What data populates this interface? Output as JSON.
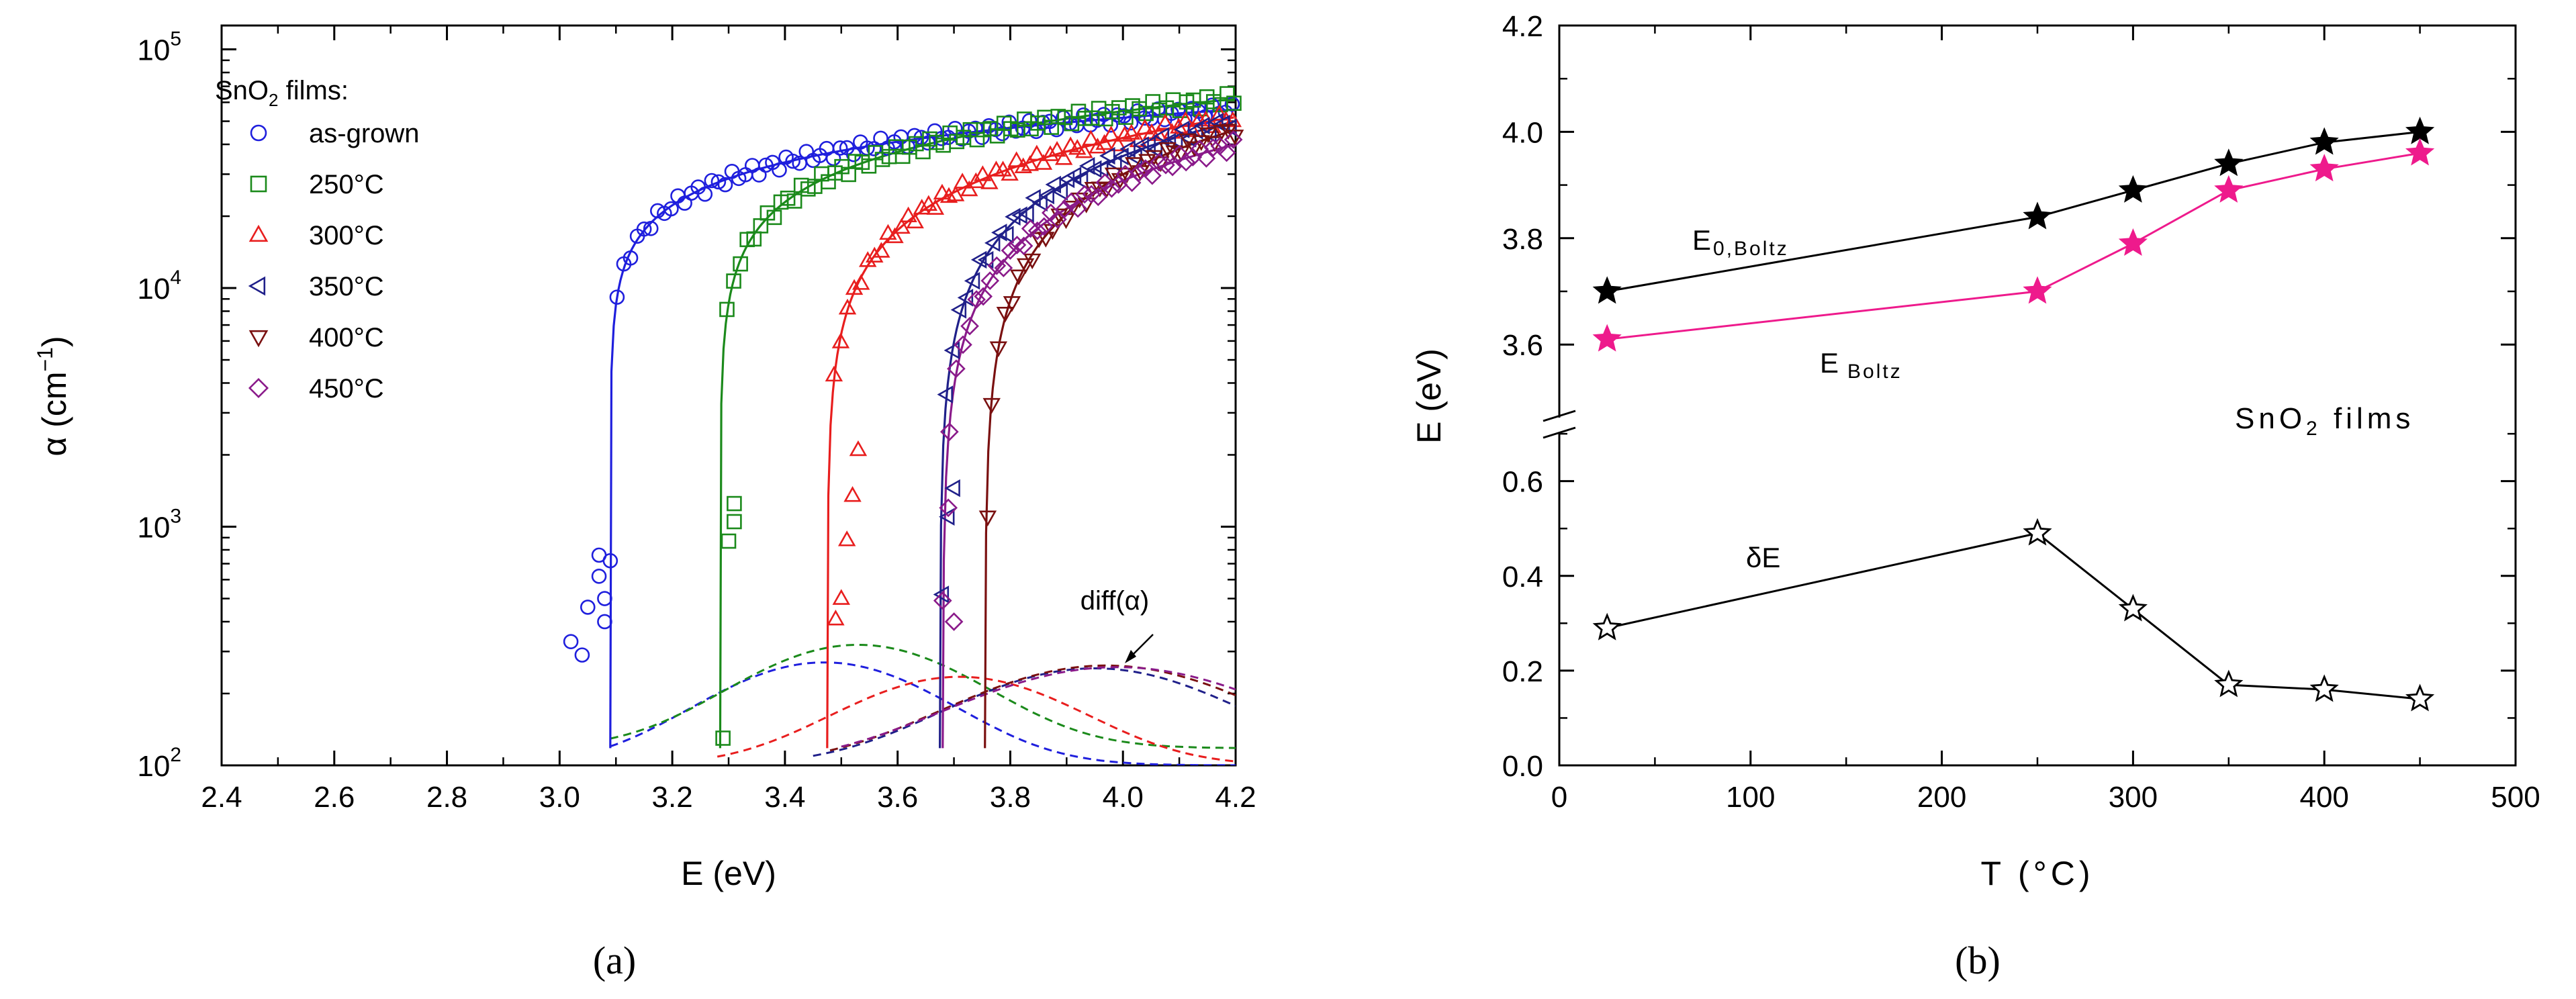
{
  "chart_data": [
    {
      "panel": "a",
      "type": "scatter",
      "caption": "(a)",
      "xlabel": "E (eV)",
      "ylabel_base": "α (cm",
      "ylabel_exp": "−1",
      "ylabel_close": ")",
      "xlim": [
        2.4,
        4.2
      ],
      "ylim_log10": [
        2,
        5.1
      ],
      "x_ticks": [
        "2.4",
        "2.6",
        "2.8",
        "3.0",
        "3.2",
        "3.4",
        "3.6",
        "3.8",
        "4.0",
        "4.2"
      ],
      "y_tick_base": "10",
      "y_tick_exps": [
        "2",
        "3",
        "4",
        "5"
      ],
      "legend": {
        "title_pre": "SnO",
        "title_sub": "2",
        "title_post": " films:",
        "entries": [
          "as-grown",
          "250°C",
          "300°C",
          "350°C",
          "400°C",
          "450°C"
        ]
      },
      "annotation": "diff(α)",
      "series": [
        {
          "name": "as-grown",
          "color": "#1f1fdd",
          "marker": "circle",
          "onset": 3.09,
          "A": 56000,
          "p": 0.4,
          "emax": 4.2,
          "scatter_low": [
            [
              3.02,
              330
            ],
            [
              3.04,
              290
            ],
            [
              3.05,
              460
            ],
            [
              3.07,
              620
            ],
            [
              3.07,
              760
            ],
            [
              3.08,
              500
            ],
            [
              3.08,
              400
            ],
            [
              3.09,
              720
            ]
          ]
        },
        {
          "name": "250°C",
          "color": "#1b8a1b",
          "marker": "square",
          "onset": 3.285,
          "A": 62000,
          "p": 0.48,
          "emax": 4.2,
          "scatter_low": [
            [
              3.29,
              130
            ],
            [
              3.3,
              870
            ],
            [
              3.31,
              1050
            ],
            [
              3.31,
              1250
            ]
          ]
        },
        {
          "name": "300°C",
          "color": "#e81e1e",
          "marker": "triangle-up",
          "onset": 3.475,
          "A": 52000,
          "p": 0.62,
          "emax": 4.2,
          "scatter_low": [
            [
              3.49,
              410
            ],
            [
              3.5,
              500
            ],
            [
              3.51,
              880
            ],
            [
              3.52,
              1350
            ],
            [
              3.53,
              2100
            ]
          ]
        },
        {
          "name": "350°C",
          "color": "#20208a",
          "marker": "triangle-left",
          "onset": 3.675,
          "A": 50000,
          "p": 0.7,
          "emax": 4.2,
          "scatter_low": [
            [
              3.68,
              520
            ],
            [
              3.69,
              1100
            ],
            [
              3.7,
              1450
            ]
          ]
        },
        {
          "name": "400°C",
          "color": "#7a1010",
          "marker": "triangle-down",
          "onset": 3.755,
          "A": 46000,
          "p": 0.72,
          "emax": 4.2,
          "scatter_low": [
            [
              3.76,
              1100
            ]
          ]
        },
        {
          "name": "450°C",
          "color": "#8a1a8a",
          "marker": "diamond",
          "onset": 3.68,
          "A": 40000,
          "p": 0.72,
          "emax": 4.2,
          "scatter_low": [
            [
              3.68,
              490
            ],
            [
              3.7,
              400
            ],
            [
              3.69,
              1200
            ]
          ]
        }
      ],
      "diff_curves": [
        {
          "color": "#1f1fdd",
          "peak_e": 3.47,
          "peak_alpha": 270,
          "width": 0.26,
          "base": 100,
          "start": 3.09,
          "end": 4.2
        },
        {
          "color": "#1b8a1b",
          "peak_e": 3.53,
          "peak_alpha": 320,
          "width": 0.26,
          "base": 118,
          "start": 3.09,
          "end": 4.2
        },
        {
          "color": "#e81e1e",
          "peak_e": 3.71,
          "peak_alpha": 235,
          "width": 0.26,
          "base": 100,
          "start": 3.28,
          "end": 4.2
        },
        {
          "color": "#20208a",
          "peak_e": 3.95,
          "peak_alpha": 255,
          "width": 0.3,
          "base": 100,
          "start": 3.45,
          "end": 4.2
        },
        {
          "color": "#7a1010",
          "peak_e": 3.97,
          "peak_alpha": 262,
          "width": 0.32,
          "base": 100,
          "start": 3.48,
          "end": 4.2
        },
        {
          "color": "#8a1a8a",
          "peak_e": 3.99,
          "peak_alpha": 258,
          "width": 0.34,
          "base": 100,
          "start": 3.5,
          "end": 4.2
        }
      ]
    },
    {
      "panel": "b",
      "type": "line",
      "caption": "(b)",
      "xlabel": "T (°C)",
      "ylabel": "E (eV)",
      "xlim": [
        0,
        500
      ],
      "x_ticks": [
        "0",
        "100",
        "200",
        "300",
        "400",
        "500"
      ],
      "upper_ylim": [
        3.45,
        4.2
      ],
      "upper_y_ticks": [
        "3.6",
        "3.8",
        "4.0",
        "4.2"
      ],
      "lower_ylim": [
        0,
        0.72
      ],
      "lower_y_ticks": [
        "0.0",
        "0.2",
        "0.4",
        "0.6"
      ],
      "annotation_text": "SnO",
      "annotation_sub": "2",
      "annotation_post": " films",
      "series": [
        {
          "name": "E0,Boltz",
          "label_main": "E",
          "label_sub": "0,Boltz",
          "color": "#000000",
          "marker": "star-filled",
          "axis": "upper",
          "x": [
            25,
            250,
            300,
            350,
            400,
            450
          ],
          "y": [
            3.7,
            3.84,
            3.89,
            3.94,
            3.98,
            4.0
          ]
        },
        {
          "name": "EBoltz",
          "label_main": "E",
          "label_sub": "Boltz",
          "color": "#ee1a8c",
          "marker": "star-filled",
          "axis": "upper",
          "x": [
            25,
            250,
            300,
            350,
            400,
            450
          ],
          "y": [
            3.61,
            3.7,
            3.79,
            3.89,
            3.93,
            3.96
          ]
        },
        {
          "name": "δE",
          "label_main": "δE",
          "label_sub": "",
          "color": "#000000",
          "marker": "star-open",
          "axis": "lower",
          "x": [
            25,
            250,
            300,
            350,
            400,
            450
          ],
          "y": [
            0.29,
            0.49,
            0.33,
            0.17,
            0.16,
            0.14
          ]
        }
      ]
    }
  ]
}
